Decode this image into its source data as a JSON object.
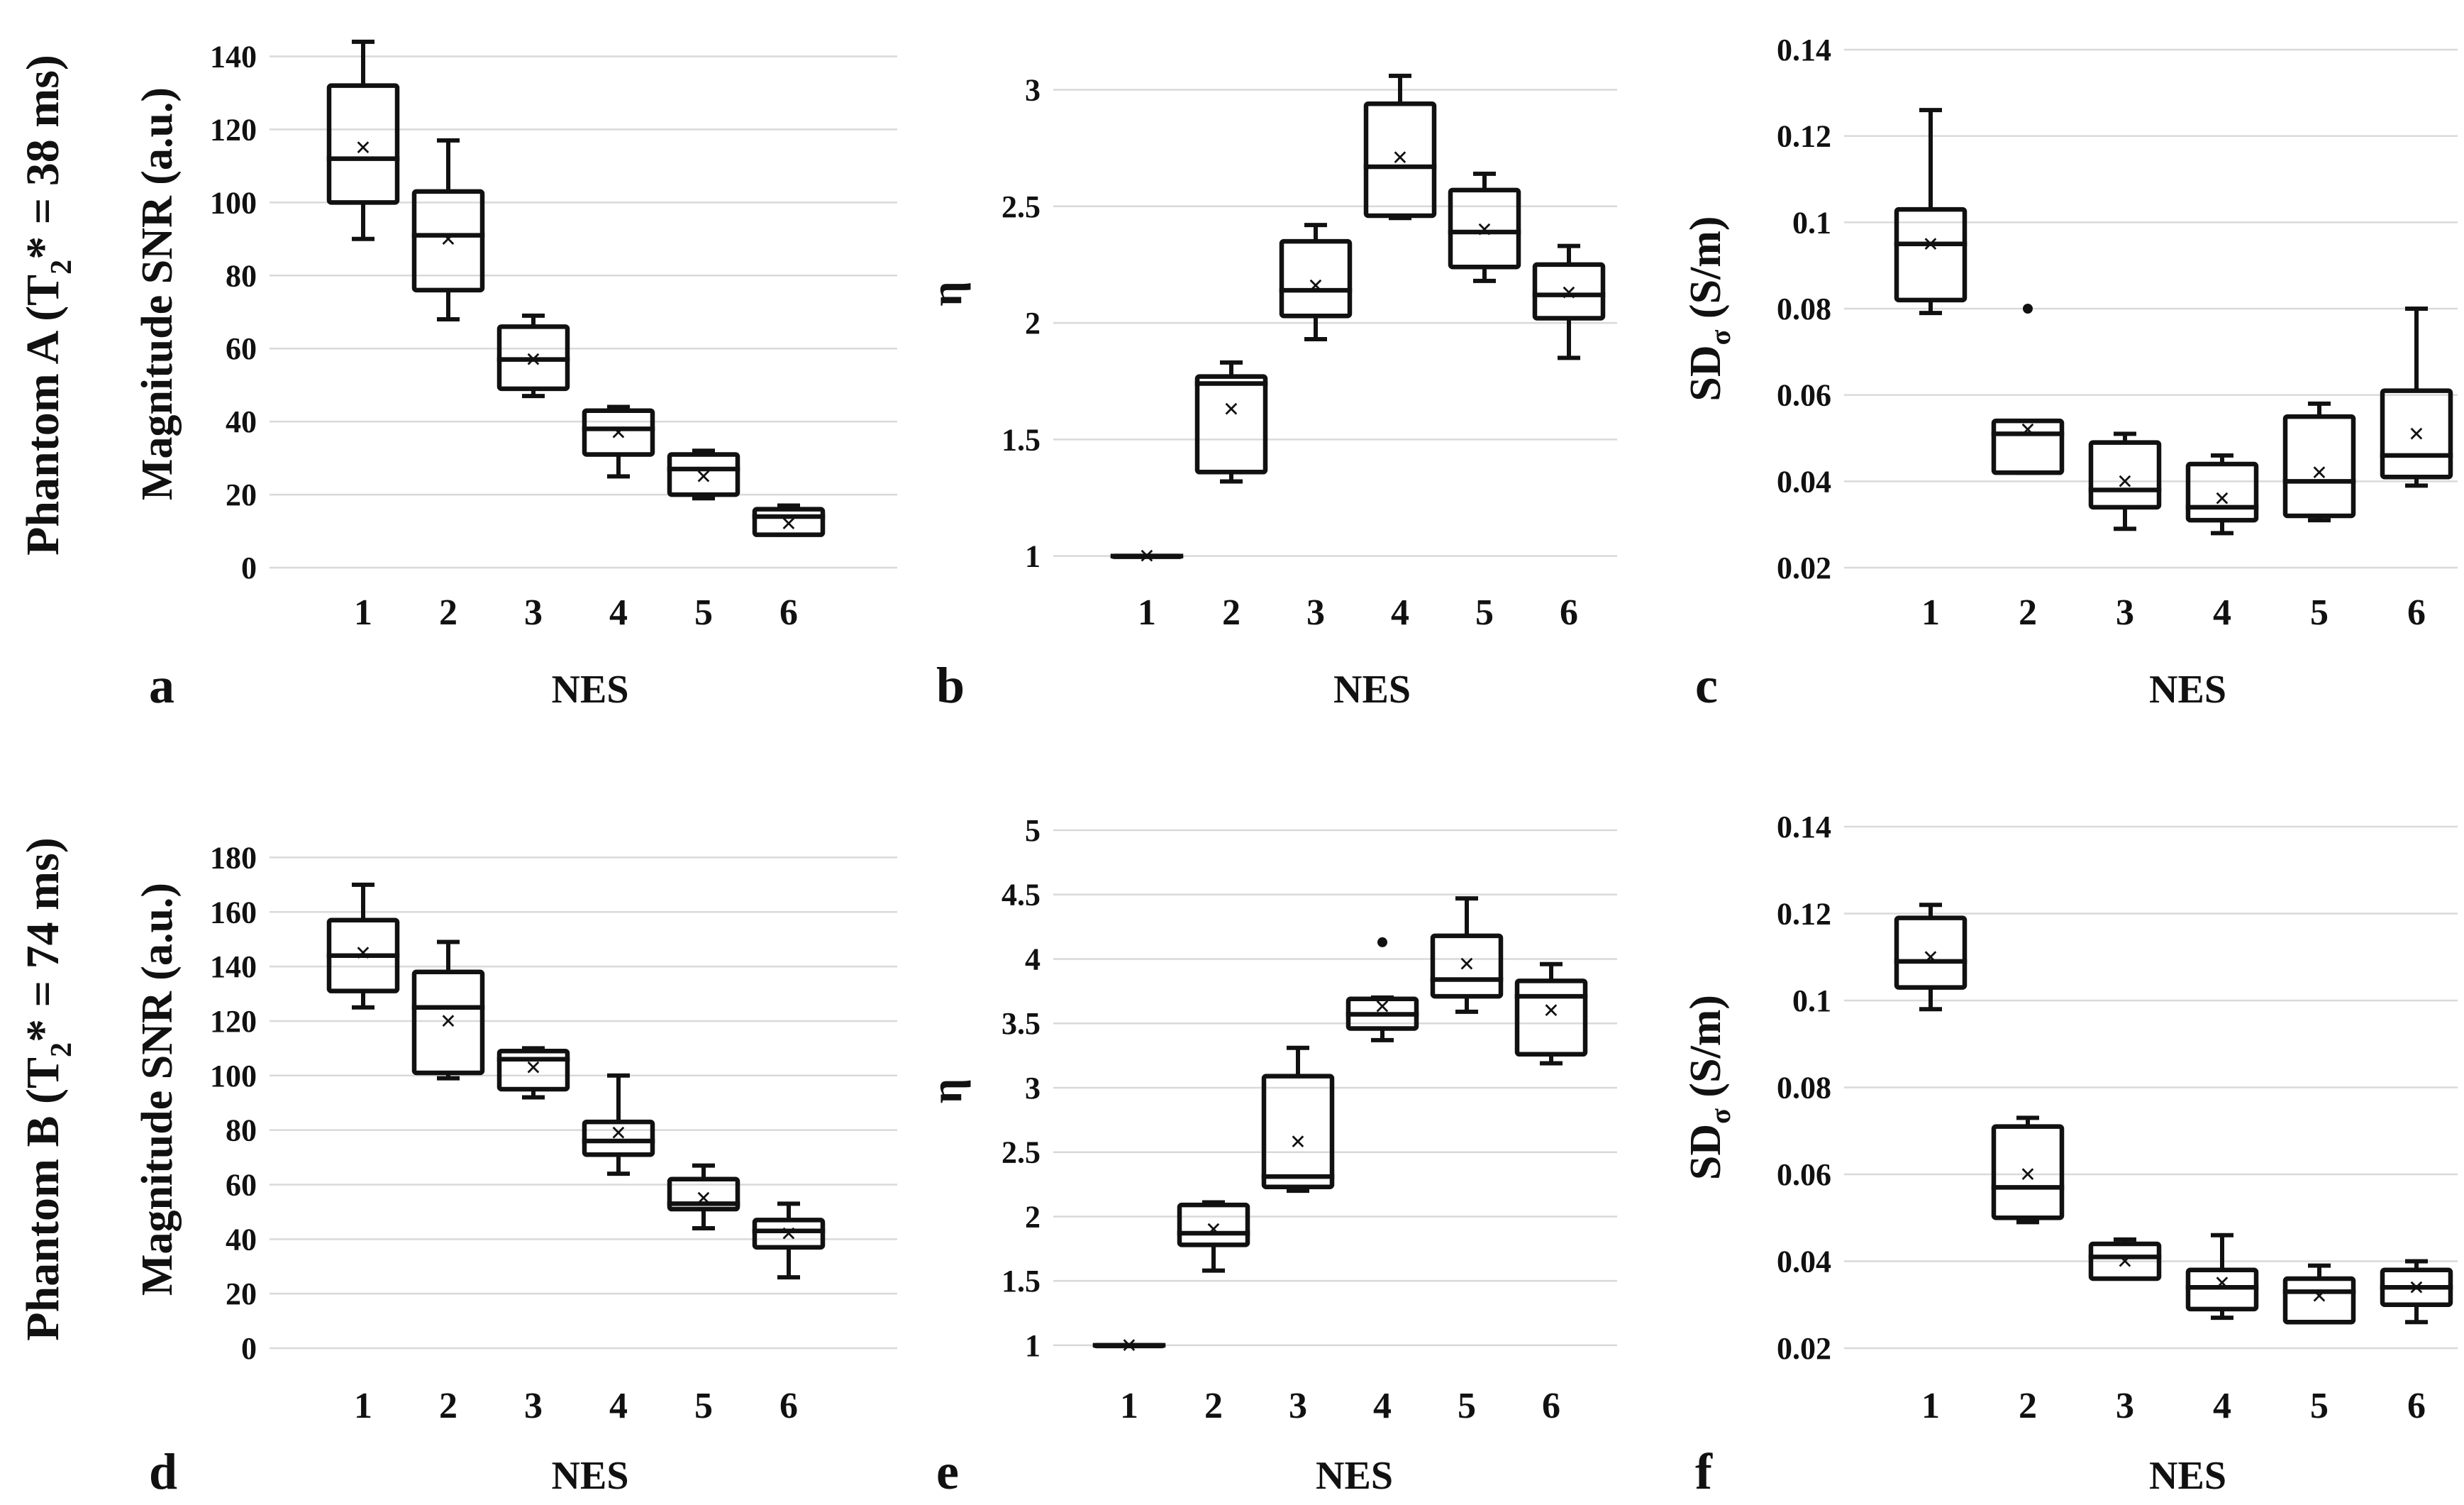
{
  "row_labels": [
    {
      "prefix": "Phantom A (T",
      "sub": "2",
      "suffix": "* = 38 ms)"
    },
    {
      "prefix": "Phantom B (T",
      "sub": "2",
      "suffix": "* = 74 ms)"
    }
  ],
  "chart_data": [
    {
      "type": "box",
      "panel": "a",
      "title": "",
      "xlabel": "NES",
      "ylabel": {
        "text": "Magnitude SNR (a.u.)"
      },
      "categories": [
        "1",
        "2",
        "3",
        "4",
        "5",
        "6"
      ],
      "ylim": [
        0,
        150
      ],
      "yticks": [
        0,
        20,
        40,
        60,
        80,
        100,
        120,
        140
      ],
      "grid": true,
      "boxes": [
        {
          "min": 90,
          "q1": 100,
          "median": 112,
          "q3": 132,
          "max": 144,
          "mean": 115,
          "outliers": []
        },
        {
          "min": 68,
          "q1": 76,
          "median": 91,
          "q3": 103,
          "max": 117,
          "mean": 90,
          "outliers": []
        },
        {
          "min": 47,
          "q1": 49,
          "median": 57,
          "q3": 66,
          "max": 69,
          "mean": 57,
          "outliers": []
        },
        {
          "min": 25,
          "q1": 31,
          "median": 38,
          "q3": 43,
          "max": 44,
          "mean": 37,
          "outliers": []
        },
        {
          "min": 19,
          "q1": 20,
          "median": 27,
          "q3": 31,
          "max": 32,
          "mean": 25,
          "outliers": []
        },
        {
          "min": 9,
          "q1": 9,
          "median": 14,
          "q3": 16,
          "max": 17,
          "mean": 12,
          "outliers": []
        }
      ]
    },
    {
      "type": "box",
      "panel": "b",
      "title": "",
      "xlabel": "NES",
      "ylabel": {
        "text": "η"
      },
      "categories": [
        "1",
        "2",
        "3",
        "4",
        "5",
        "6"
      ],
      "ylim": [
        0.95,
        3.3
      ],
      "yticks": [
        1,
        1.5,
        2,
        2.5,
        3
      ],
      "grid": true,
      "boxes": [
        {
          "min": 1,
          "q1": 1,
          "median": 1,
          "q3": 1,
          "max": 1,
          "mean": 1,
          "outliers": []
        },
        {
          "min": 1.32,
          "q1": 1.36,
          "median": 1.74,
          "q3": 1.77,
          "max": 1.83,
          "mean": 1.63,
          "outliers": []
        },
        {
          "min": 1.93,
          "q1": 2.03,
          "median": 2.14,
          "q3": 2.35,
          "max": 2.42,
          "mean": 2.16,
          "outliers": []
        },
        {
          "min": 2.45,
          "q1": 2.46,
          "median": 2.67,
          "q3": 2.94,
          "max": 3.06,
          "mean": 2.71,
          "outliers": []
        },
        {
          "min": 2.18,
          "q1": 2.24,
          "median": 2.39,
          "q3": 2.57,
          "max": 2.64,
          "mean": 2.4,
          "outliers": []
        },
        {
          "min": 1.85,
          "q1": 2.02,
          "median": 2.12,
          "q3": 2.25,
          "max": 2.33,
          "mean": 2.13,
          "outliers": []
        }
      ]
    },
    {
      "type": "box",
      "panel": "c",
      "title": "",
      "xlabel": "NES",
      "ylabel": {
        "text": "SD",
        "sub": "σ",
        "suffix": " (S/m)"
      },
      "categories": [
        "1",
        "2",
        "3",
        "4",
        "5",
        "6"
      ],
      "ylim": [
        0.02,
        0.14
      ],
      "yticks": [
        0.02,
        0.04,
        0.06,
        0.08,
        0.1,
        0.12,
        0.14
      ],
      "grid": true,
      "boxes": [
        {
          "min": 0.079,
          "q1": 0.082,
          "median": 0.095,
          "q3": 0.103,
          "max": 0.126,
          "mean": 0.095,
          "outliers": []
        },
        {
          "min": 0.042,
          "q1": 0.042,
          "median": 0.051,
          "q3": 0.054,
          "max": 0.054,
          "mean": 0.052,
          "outliers": [
            0.08
          ]
        },
        {
          "min": 0.029,
          "q1": 0.034,
          "median": 0.038,
          "q3": 0.049,
          "max": 0.051,
          "mean": 0.04,
          "outliers": []
        },
        {
          "min": 0.028,
          "q1": 0.031,
          "median": 0.034,
          "q3": 0.044,
          "max": 0.046,
          "mean": 0.036,
          "outliers": []
        },
        {
          "min": 0.031,
          "q1": 0.032,
          "median": 0.04,
          "q3": 0.055,
          "max": 0.058,
          "mean": 0.042,
          "outliers": []
        },
        {
          "min": 0.039,
          "q1": 0.041,
          "median": 0.046,
          "q3": 0.061,
          "max": 0.08,
          "mean": 0.051,
          "outliers": []
        }
      ]
    },
    {
      "type": "box",
      "panel": "d",
      "title": "",
      "xlabel": "NES",
      "ylabel": {
        "text": "Magnitude SNR (a.u.)"
      },
      "categories": [
        "1",
        "2",
        "3",
        "4",
        "5",
        "6"
      ],
      "ylim": [
        0,
        190
      ],
      "yticks": [
        0,
        20,
        40,
        60,
        80,
        100,
        120,
        140,
        160,
        180
      ],
      "grid": true,
      "boxes": [
        {
          "min": 125,
          "q1": 131,
          "median": 144,
          "q3": 157,
          "max": 170,
          "mean": 145,
          "outliers": []
        },
        {
          "min": 99,
          "q1": 101,
          "median": 125,
          "q3": 138,
          "max": 149,
          "mean": 120,
          "outliers": []
        },
        {
          "min": 92,
          "q1": 95,
          "median": 106,
          "q3": 109,
          "max": 110,
          "mean": 103,
          "outliers": []
        },
        {
          "min": 64,
          "q1": 71,
          "median": 76,
          "q3": 83,
          "max": 100,
          "mean": 79,
          "outliers": []
        },
        {
          "min": 44,
          "q1": 51,
          "median": 53,
          "q3": 62,
          "max": 67,
          "mean": 55,
          "outliers": []
        },
        {
          "min": 26,
          "q1": 37,
          "median": 43,
          "q3": 47,
          "max": 53,
          "mean": 42,
          "outliers": []
        }
      ]
    },
    {
      "type": "box",
      "panel": "e",
      "title": "",
      "xlabel": "NES",
      "ylabel": {
        "text": "η"
      },
      "categories": [
        "1",
        "2",
        "3",
        "4",
        "5",
        "6"
      ],
      "ylim": [
        0.95,
        5.0
      ],
      "yticks": [
        1,
        1.5,
        2,
        2.5,
        3,
        3.5,
        4,
        4.5,
        5
      ],
      "grid": true,
      "boxes": [
        {
          "min": 1,
          "q1": 1,
          "median": 1,
          "q3": 1,
          "max": 1,
          "mean": 1,
          "outliers": []
        },
        {
          "min": 1.58,
          "q1": 1.78,
          "median": 1.87,
          "q3": 2.09,
          "max": 2.11,
          "mean": 1.9,
          "outliers": []
        },
        {
          "min": 2.2,
          "q1": 2.23,
          "median": 2.31,
          "q3": 3.09,
          "max": 3.31,
          "mean": 2.58,
          "outliers": []
        },
        {
          "min": 3.37,
          "q1": 3.46,
          "median": 3.57,
          "q3": 3.69,
          "max": 3.7,
          "mean": 3.63,
          "outliers": [
            4.13
          ]
        },
        {
          "min": 3.59,
          "q1": 3.71,
          "median": 3.84,
          "q3": 4.18,
          "max": 4.47,
          "mean": 3.96,
          "outliers": []
        },
        {
          "min": 3.19,
          "q1": 3.26,
          "median": 3.71,
          "q3": 3.83,
          "max": 3.96,
          "mean": 3.6,
          "outliers": []
        }
      ]
    },
    {
      "type": "box",
      "panel": "f",
      "title": "",
      "xlabel": "NES",
      "ylabel": {
        "text": "SD",
        "sub": "σ",
        "suffix": " (S/m)"
      },
      "categories": [
        "1",
        "2",
        "3",
        "4",
        "5",
        "6"
      ],
      "ylim": [
        0.02,
        0.14
      ],
      "yticks": [
        0.02,
        0.04,
        0.06,
        0.08,
        0.1,
        0.12,
        0.14
      ],
      "grid": true,
      "boxes": [
        {
          "min": 0.098,
          "q1": 0.103,
          "median": 0.109,
          "q3": 0.119,
          "max": 0.122,
          "mean": 0.11,
          "outliers": []
        },
        {
          "min": 0.049,
          "q1": 0.05,
          "median": 0.057,
          "q3": 0.071,
          "max": 0.073,
          "mean": 0.06,
          "outliers": []
        },
        {
          "min": 0.036,
          "q1": 0.036,
          "median": 0.041,
          "q3": 0.044,
          "max": 0.045,
          "mean": 0.04,
          "outliers": []
        },
        {
          "min": 0.027,
          "q1": 0.029,
          "median": 0.034,
          "q3": 0.038,
          "max": 0.046,
          "mean": 0.035,
          "outliers": []
        },
        {
          "min": 0.026,
          "q1": 0.026,
          "median": 0.033,
          "q3": 0.036,
          "max": 0.039,
          "mean": 0.032,
          "outliers": []
        },
        {
          "min": 0.026,
          "q1": 0.03,
          "median": 0.034,
          "q3": 0.038,
          "max": 0.04,
          "mean": 0.034,
          "outliers": []
        }
      ]
    }
  ]
}
